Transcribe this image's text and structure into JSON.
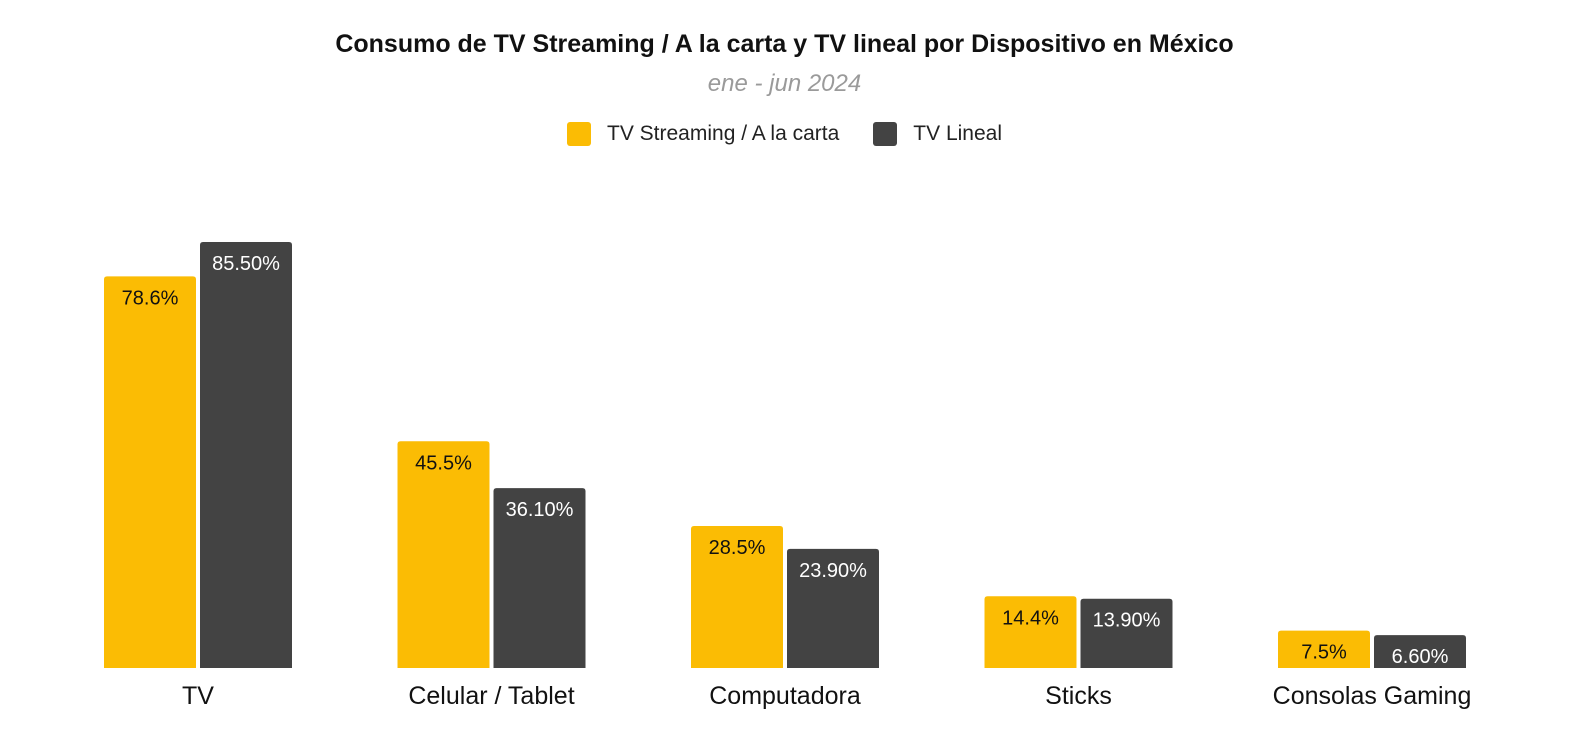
{
  "chart_data": {
    "type": "bar",
    "title": "Consumo de TV Streaming / A la carta y TV lineal por Dispositivo en México",
    "subtitle": "ene - jun 2024",
    "xlabel": "",
    "ylabel": "",
    "grid": false,
    "legend_position": "top-center",
    "categories": [
      "TV",
      "Celular / Tablet",
      "Computadora",
      "Sticks",
      "Consolas Gaming"
    ],
    "series": [
      {
        "name": "TV Streaming / A la carta",
        "color": "#FBBC04",
        "label_color": "#111111",
        "values": [
          78.6,
          45.5,
          28.5,
          14.4,
          7.5
        ],
        "labels": [
          "78.6%",
          "45.5%",
          "28.5%",
          "14.4%",
          "7.5%"
        ]
      },
      {
        "name": "TV Lineal",
        "color": "#434343",
        "label_color": "#ffffff",
        "values": [
          85.5,
          36.1,
          23.9,
          13.9,
          6.6
        ],
        "labels": [
          "85.50%",
          "36.10%",
          "23.90%",
          "13.90%",
          "6.60%"
        ]
      }
    ],
    "ylim": [
      0,
      85.5
    ]
  }
}
